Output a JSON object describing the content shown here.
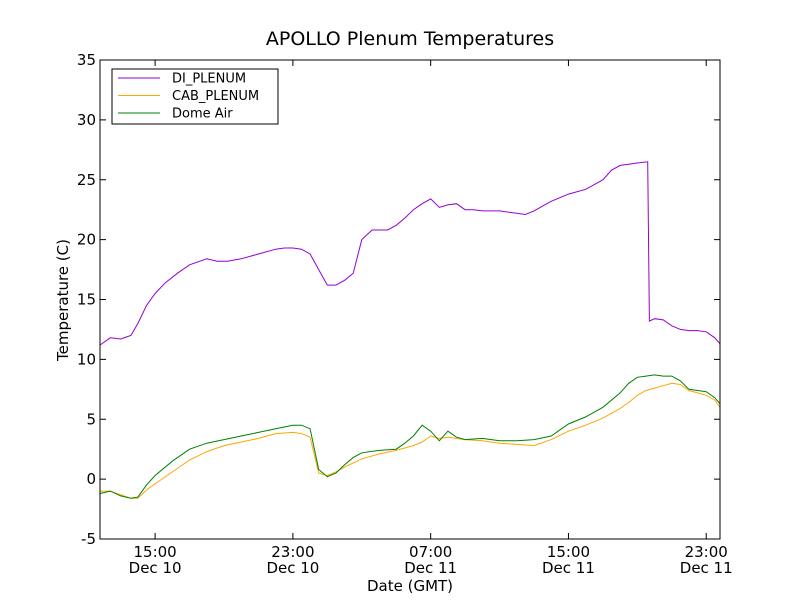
{
  "chart_data": {
    "type": "line",
    "title": "APOLLO Plenum Temperatures",
    "xlabel": "Date (GMT)",
    "ylabel": "Temperature (C)",
    "ylim": [
      -5,
      35
    ],
    "yticks": [
      "-5",
      "0",
      "5",
      "10",
      "15",
      "20",
      "25",
      "30",
      "35"
    ],
    "xlim_hours": [
      11.8,
      47.8
    ],
    "x_unit": "hours since Dec 10 00:00 GMT",
    "xticks": [
      {
        "hour": 15,
        "time": "15:00",
        "date": "Dec 10"
      },
      {
        "hour": 23,
        "time": "23:00",
        "date": "Dec 10"
      },
      {
        "hour": 31,
        "time": "07:00",
        "date": "Dec 11"
      },
      {
        "hour": 39,
        "time": "15:00",
        "date": "Dec 11"
      },
      {
        "hour": 47,
        "time": "23:00",
        "date": "Dec 11"
      }
    ],
    "grid": false,
    "legend_position": "top-left",
    "series": [
      {
        "name": "DI_PLENUM",
        "color": "#9400D3",
        "x": [
          11.8,
          12.4,
          13.0,
          13.6,
          14.0,
          14.5,
          15.0,
          15.6,
          16.3,
          17.0,
          17.6,
          18.0,
          18.6,
          19.2,
          20.0,
          21.0,
          22.0,
          22.5,
          23.0,
          23.5,
          24.0,
          24.5,
          25.0,
          25.5,
          26.0,
          26.5,
          27.0,
          27.3,
          27.6,
          28.0,
          28.5,
          29.0,
          29.5,
          30.0,
          30.5,
          31.0,
          31.5,
          32.0,
          32.5,
          33.0,
          33.5,
          34.0,
          35.0,
          36.0,
          36.5,
          37.0,
          37.5,
          38.0,
          39.0,
          40.0,
          41.0,
          41.5,
          42.0,
          42.5,
          43.0,
          43.6,
          43.7,
          44.0,
          44.5,
          45.0,
          45.5,
          46.0,
          46.5,
          47.0,
          47.5,
          47.8
        ],
        "y": [
          11.2,
          11.8,
          11.7,
          12.0,
          13.0,
          14.5,
          15.5,
          16.4,
          17.2,
          17.9,
          18.2,
          18.4,
          18.2,
          18.2,
          18.4,
          18.8,
          19.2,
          19.3,
          19.3,
          19.2,
          18.8,
          17.5,
          16.2,
          16.2,
          16.6,
          17.2,
          20.0,
          20.4,
          20.8,
          20.8,
          20.8,
          21.2,
          21.8,
          22.5,
          23.0,
          23.4,
          22.7,
          22.9,
          23.0,
          22.5,
          22.5,
          22.4,
          22.4,
          22.2,
          22.1,
          22.4,
          22.8,
          23.2,
          23.8,
          24.2,
          25.0,
          25.8,
          26.2,
          26.3,
          26.4,
          26.5,
          13.2,
          13.4,
          13.3,
          12.8,
          12.5,
          12.4,
          12.4,
          12.3,
          11.8,
          11.3
        ]
      },
      {
        "name": "CAB_PLENUM",
        "color": "#FFA500",
        "x": [
          11.8,
          12.4,
          13.0,
          13.6,
          14.0,
          14.5,
          15.0,
          16.0,
          17.0,
          18.0,
          19.0,
          20.0,
          21.0,
          22.0,
          23.0,
          23.5,
          24.0,
          24.5,
          25.0,
          25.5,
          26.0,
          27.0,
          28.0,
          29.0,
          30.0,
          30.5,
          31.0,
          31.5,
          32.0,
          33.0,
          34.0,
          35.0,
          36.0,
          37.0,
          38.0,
          39.0,
          40.0,
          41.0,
          42.0,
          42.5,
          43.0,
          43.5,
          44.0,
          44.5,
          45.0,
          45.5,
          46.0,
          46.5,
          47.0,
          47.5,
          47.8
        ],
        "y": [
          -1.0,
          -1.0,
          -1.3,
          -1.6,
          -1.6,
          -0.9,
          -0.4,
          0.6,
          1.6,
          2.3,
          2.8,
          3.1,
          3.4,
          3.8,
          3.9,
          3.8,
          3.5,
          0.5,
          0.3,
          0.6,
          1.0,
          1.7,
          2.1,
          2.4,
          2.8,
          3.1,
          3.6,
          3.4,
          3.5,
          3.3,
          3.2,
          3.0,
          2.9,
          2.8,
          3.3,
          4.0,
          4.5,
          5.1,
          5.9,
          6.4,
          7.0,
          7.4,
          7.6,
          7.8,
          8.0,
          7.9,
          7.4,
          7.2,
          7.0,
          6.6,
          6.0
        ]
      },
      {
        "name": "Dome Air",
        "color": "#008000",
        "x": [
          11.8,
          12.4,
          13.0,
          13.6,
          14.0,
          14.5,
          15.0,
          16.0,
          17.0,
          18.0,
          19.0,
          20.0,
          21.0,
          22.0,
          23.0,
          23.5,
          24.0,
          24.5,
          25.0,
          25.5,
          26.0,
          26.5,
          27.0,
          28.0,
          29.0,
          29.5,
          30.0,
          30.5,
          31.0,
          31.5,
          32.0,
          32.5,
          33.0,
          34.0,
          35.0,
          36.0,
          37.0,
          38.0,
          39.0,
          40.0,
          41.0,
          42.0,
          42.5,
          43.0,
          43.5,
          44.0,
          44.5,
          45.0,
          45.5,
          46.0,
          46.5,
          47.0,
          47.5,
          47.8
        ],
        "y": [
          -1.2,
          -1.0,
          -1.4,
          -1.6,
          -1.5,
          -0.5,
          0.3,
          1.5,
          2.5,
          3.0,
          3.3,
          3.6,
          3.9,
          4.2,
          4.5,
          4.5,
          4.2,
          0.8,
          0.2,
          0.5,
          1.2,
          1.8,
          2.2,
          2.4,
          2.5,
          3.0,
          3.6,
          4.5,
          4.0,
          3.2,
          4.0,
          3.5,
          3.3,
          3.4,
          3.2,
          3.2,
          3.3,
          3.6,
          4.6,
          5.2,
          6.0,
          7.2,
          8.0,
          8.5,
          8.6,
          8.7,
          8.6,
          8.6,
          8.2,
          7.5,
          7.4,
          7.3,
          6.8,
          6.3
        ]
      }
    ]
  }
}
